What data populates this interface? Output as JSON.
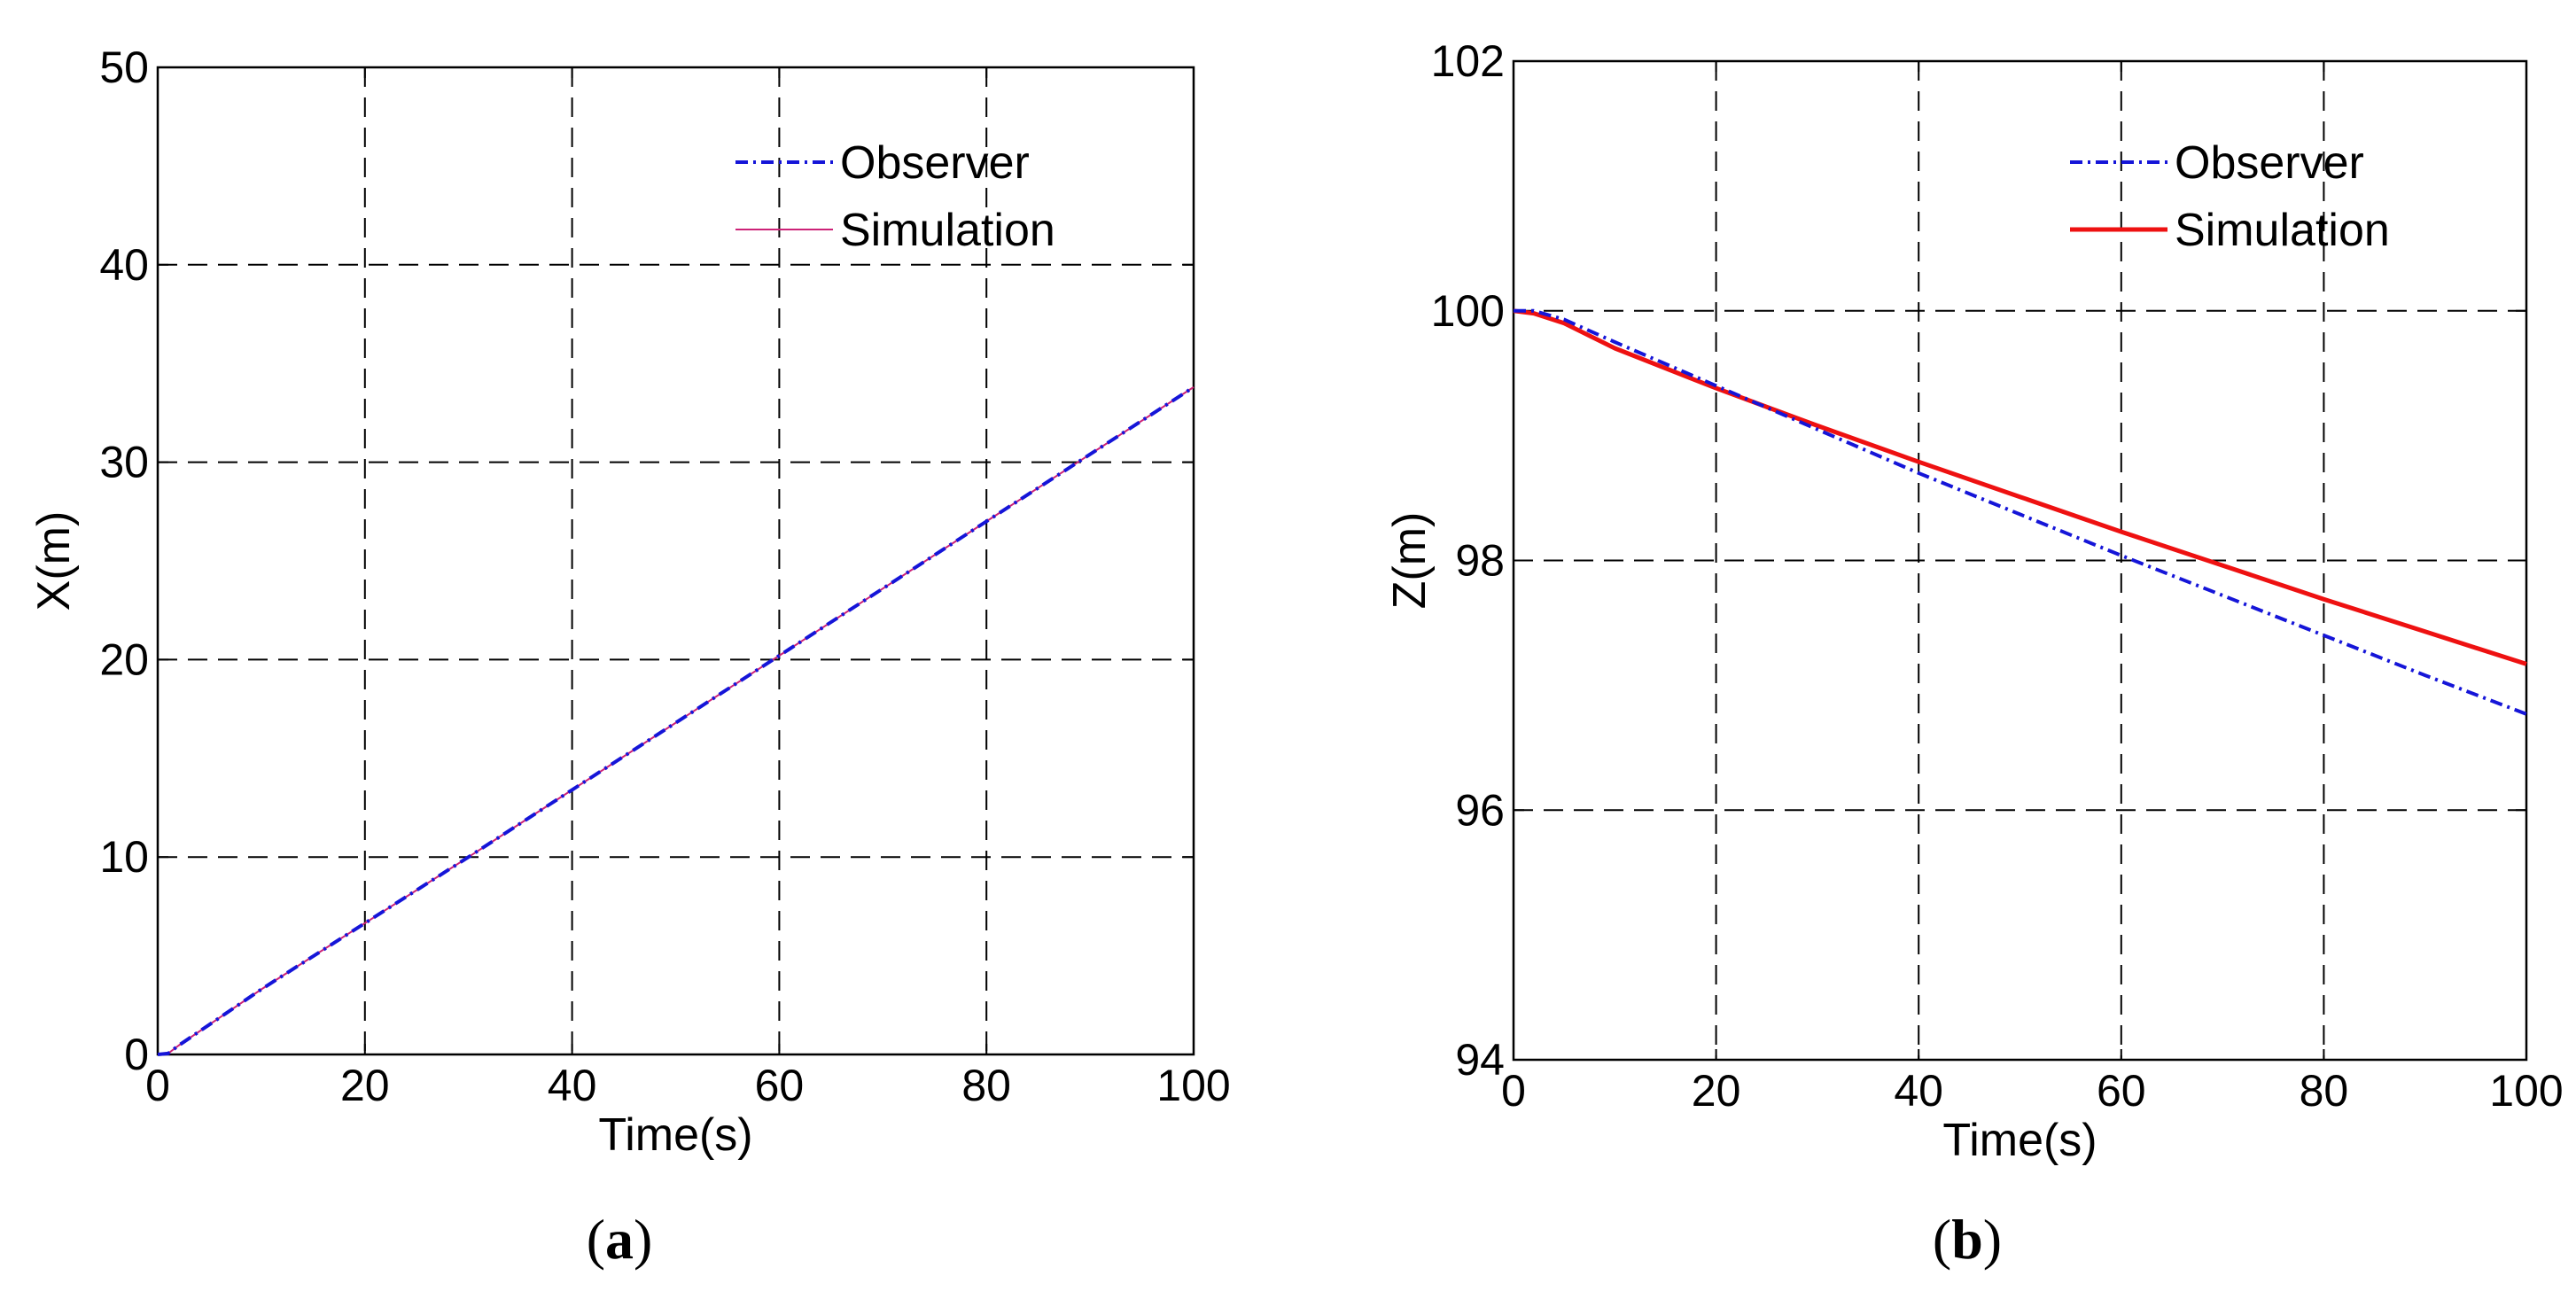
{
  "chart_data": [
    {
      "type": "line",
      "caption_letter": "a",
      "xlabel": "Time(s)",
      "ylabel": "X(m)",
      "xlim": [
        0,
        100
      ],
      "ylim": [
        0,
        50
      ],
      "xticks": [
        0,
        20,
        40,
        60,
        80,
        100
      ],
      "yticks": [
        0,
        10,
        20,
        30,
        40,
        50
      ],
      "grid": true,
      "legend_position": "top-right",
      "series": [
        {
          "name": "Observer",
          "color": "#1515d8",
          "style": "dash-dot",
          "x": [
            0,
            1,
            2,
            10,
            20,
            30,
            40,
            50,
            60,
            70,
            80,
            90,
            100
          ],
          "y": [
            0,
            0.05,
            0.45,
            3.3,
            6.65,
            10.0,
            13.4,
            16.8,
            20.2,
            23.6,
            27.0,
            30.4,
            33.8
          ]
        },
        {
          "name": "Simulation",
          "color": "#cc2277",
          "style": "solid-thin",
          "x": [
            0,
            1,
            2,
            10,
            20,
            30,
            40,
            50,
            60,
            70,
            80,
            90,
            100
          ],
          "y": [
            0,
            0.05,
            0.45,
            3.3,
            6.65,
            10.0,
            13.4,
            16.8,
            20.2,
            23.6,
            27.0,
            30.4,
            33.8
          ]
        }
      ]
    },
    {
      "type": "line",
      "caption_letter": "b",
      "xlabel": "Time(s)",
      "ylabel": "Z(m)",
      "xlim": [
        0,
        100
      ],
      "ylim": [
        94,
        102
      ],
      "xticks": [
        0,
        20,
        40,
        60,
        80,
        100
      ],
      "yticks": [
        94,
        96,
        98,
        100,
        102
      ],
      "grid": true,
      "legend_position": "top-right",
      "series": [
        {
          "name": "Observer",
          "color": "#1515d8",
          "style": "dash-dot",
          "x": [
            0,
            2,
            5,
            10,
            20,
            30,
            40,
            50,
            60,
            70,
            80,
            90,
            100
          ],
          "y": [
            100.0,
            100.0,
            99.93,
            99.75,
            99.4,
            99.05,
            98.7,
            98.37,
            98.04,
            97.72,
            97.4,
            97.08,
            96.77
          ]
        },
        {
          "name": "Simulation",
          "color": "#ee1111",
          "style": "solid-thick",
          "x": [
            0,
            2,
            5,
            10,
            20,
            30,
            40,
            50,
            60,
            70,
            80,
            90,
            100
          ],
          "y": [
            100.0,
            99.98,
            99.9,
            99.7,
            99.38,
            99.08,
            98.79,
            98.51,
            98.23,
            97.96,
            97.69,
            97.43,
            97.17
          ]
        }
      ]
    }
  ]
}
